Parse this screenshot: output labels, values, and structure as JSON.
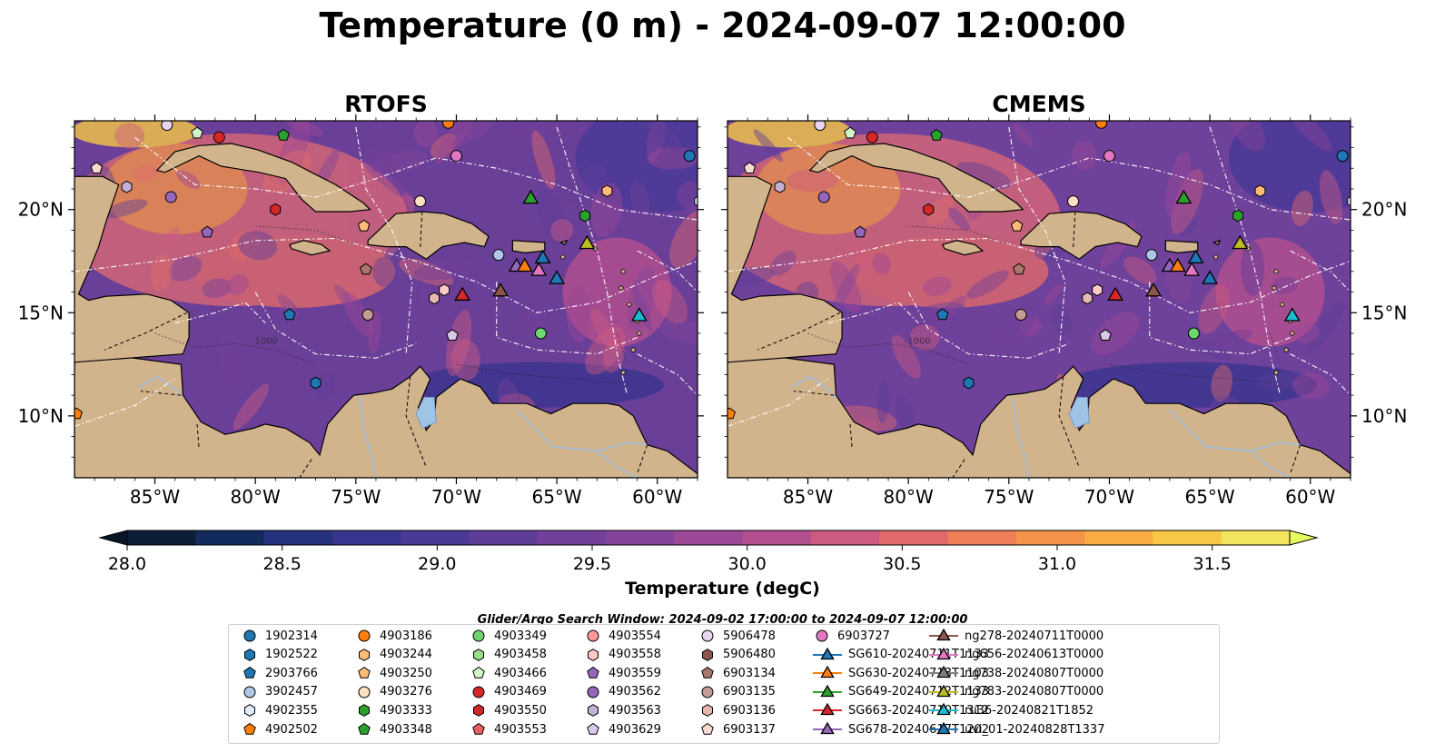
{
  "title": "Temperature (0 m) - 2024-09-07 12:00:00",
  "panels": [
    {
      "title": "RTOFS"
    },
    {
      "title": "CMEMS"
    }
  ],
  "axes": {
    "lon_ticks": [
      "85°W",
      "80°W",
      "75°W",
      "70°W",
      "65°W",
      "60°W"
    ],
    "lon_values": [
      -85,
      -80,
      -75,
      -70,
      -65,
      -60
    ],
    "lat_ticks": [
      "20°N",
      "15°N",
      "10°N"
    ],
    "lat_values": [
      20,
      15,
      10
    ],
    "lon_range": [
      -89,
      -58
    ],
    "lat_range": [
      7,
      24.3
    ]
  },
  "colorbar": {
    "label": "Temperature (degC)",
    "ticks": [
      "28.0",
      "28.5",
      "29.0",
      "29.5",
      "30.0",
      "30.5",
      "31.0",
      "31.5"
    ],
    "range": [
      28.0,
      31.75
    ],
    "colors": [
      "#0b1e35",
      "#132b5c",
      "#25317f",
      "#38358f",
      "#4b3996",
      "#5e3d98",
      "#72409a",
      "#85449a",
      "#9c4897",
      "#b44f8f",
      "#cd5a80",
      "#e06a6b",
      "#ee7e58",
      "#f5934a",
      "#f9ab44",
      "#f7c846",
      "#f2e55d"
    ],
    "over_color": "#e8fa60",
    "under_color": "#081626"
  },
  "colors": {
    "land": "#d2b48c",
    "lake": "#9ec5e8",
    "river": "#a9bcd0"
  },
  "search_window": "Glider/Argo Search Window: 2024-09-02 17:00:00 to 2024-09-07 12:00:00",
  "legend": [
    {
      "label": "1902314",
      "shape": "circle",
      "color": "#1f77b4"
    },
    {
      "label": "1902522",
      "shape": "hexagon",
      "color": "#1f77b4"
    },
    {
      "label": "2903766",
      "shape": "pentagon",
      "color": "#1f77b4"
    },
    {
      "label": "3902457",
      "shape": "circle",
      "color": "#aec7e8"
    },
    {
      "label": "4902355",
      "shape": "hexagon",
      "color": "#e1ecfa"
    },
    {
      "label": "4902502",
      "shape": "pentagon",
      "color": "#ff7f0e"
    },
    {
      "label": "4903186",
      "shape": "circle",
      "color": "#ff7f0e"
    },
    {
      "label": "4903244",
      "shape": "hexagon",
      "color": "#ffbb78"
    },
    {
      "label": "4903250",
      "shape": "pentagon",
      "color": "#ffbb78"
    },
    {
      "label": "4903276",
      "shape": "circle",
      "color": "#ffe0c2"
    },
    {
      "label": "4903333",
      "shape": "hexagon",
      "color": "#2ca02c"
    },
    {
      "label": "4903348",
      "shape": "pentagon",
      "color": "#2ca02c"
    },
    {
      "label": "4903349",
      "shape": "circle",
      "color": "#6fd66f"
    },
    {
      "label": "4903458",
      "shape": "hexagon",
      "color": "#98df8a"
    },
    {
      "label": "4903466",
      "shape": "pentagon",
      "color": "#d4f5cc"
    },
    {
      "label": "4903469",
      "shape": "circle",
      "color": "#d62728"
    },
    {
      "label": "4903550",
      "shape": "hexagon",
      "color": "#d62728"
    },
    {
      "label": "4903553",
      "shape": "pentagon",
      "color": "#e8605f"
    },
    {
      "label": "4903554",
      "shape": "circle",
      "color": "#ff9896"
    },
    {
      "label": "4903558",
      "shape": "hexagon",
      "color": "#ffc9c8"
    },
    {
      "label": "4903559",
      "shape": "pentagon",
      "color": "#9467bd"
    },
    {
      "label": "4903562",
      "shape": "circle",
      "color": "#9467bd"
    },
    {
      "label": "4903563",
      "shape": "hexagon",
      "color": "#c5b0d5"
    },
    {
      "label": "4903629",
      "shape": "pentagon",
      "color": "#d9c9e8"
    },
    {
      "label": "5906478",
      "shape": "circle",
      "color": "#e8d5f2"
    },
    {
      "label": "5906480",
      "shape": "hexagon",
      "color": "#8c564b"
    },
    {
      "label": "6903134",
      "shape": "pentagon",
      "color": "#a8786e"
    },
    {
      "label": "6903135",
      "shape": "circle",
      "color": "#c49c94"
    },
    {
      "label": "6903136",
      "shape": "hexagon",
      "color": "#e6b8b0"
    },
    {
      "label": "6903137",
      "shape": "pentagon",
      "color": "#f7d9d2"
    },
    {
      "label": "6903727",
      "shape": "circle",
      "color": "#e377c2"
    },
    {
      "label": "SG610-20240711T1133",
      "shape": "triangle-line",
      "color": "#1f77b4"
    },
    {
      "label": "SG630-20240713T1103",
      "shape": "triangle-line",
      "color": "#ff7f0e"
    },
    {
      "label": "SG649-20240712T1133",
      "shape": "triangle-line",
      "color": "#2ca02c"
    },
    {
      "label": "SG663-20240710T1312",
      "shape": "triangle-line",
      "color": "#d62728"
    },
    {
      "label": "SG678-20240617T1202",
      "shape": "triangle-line",
      "color": "#9467bd"
    },
    {
      "label": "ng278-20240711T0000",
      "shape": "triangle-line",
      "color": "#8c564b"
    },
    {
      "label": "ng656-20240613T0000",
      "shape": "triangle-line",
      "color": "#e377c2"
    },
    {
      "label": "ng738-20240807T0000",
      "shape": "triangle-line",
      "color": "#7f7f7f"
    },
    {
      "label": "ng783-20240807T0000",
      "shape": "triangle-line",
      "color": "#bcbd22"
    },
    {
      "label": "ru36-20240821T1852",
      "shape": "triangle-line",
      "color": "#17becf"
    },
    {
      "label": "uvi_01-20240828T1337",
      "shape": "triangle-line",
      "color": "#1f77b4"
    }
  ],
  "markers": [
    {
      "ref": "1902314",
      "lon": -58.4,
      "lat": 22.6
    },
    {
      "ref": "4903562",
      "lon": -84.2,
      "lat": 20.6
    },
    {
      "ref": "4903563",
      "lon": -86.4,
      "lat": 21.1
    },
    {
      "ref": "6903137",
      "lon": -87.9,
      "lat": 22.0
    },
    {
      "ref": "4903466",
      "lon": -82.9,
      "lat": 23.7
    },
    {
      "ref": "4903469",
      "lon": -81.8,
      "lat": 23.5
    },
    {
      "ref": "5906478",
      "lon": -84.4,
      "lat": 24.1
    },
    {
      "ref": "4903348",
      "lon": -78.6,
      "lat": 23.6
    },
    {
      "ref": "4903186",
      "lon": -70.4,
      "lat": 24.2
    },
    {
      "ref": "6903727",
      "lon": -70.0,
      "lat": 22.6
    },
    {
      "ref": "4903244",
      "lon": -62.5,
      "lat": 20.9
    },
    {
      "ref": "4903276",
      "lon": -71.8,
      "lat": 20.4
    },
    {
      "ref": "4903250",
      "lon": -74.6,
      "lat": 19.2
    },
    {
      "ref": "4903559",
      "lon": -82.4,
      "lat": 18.9
    },
    {
      "ref": "6903134",
      "lon": -74.5,
      "lat": 17.1
    },
    {
      "ref": "3902457",
      "lon": -67.9,
      "lat": 17.8
    },
    {
      "ref": "4903333",
      "lon": -63.6,
      "lat": 19.7
    },
    {
      "ref": "4903558",
      "lon": -70.6,
      "lat": 16.1
    },
    {
      "ref": "6903136",
      "lon": -71.1,
      "lat": 15.7
    },
    {
      "ref": "6903135",
      "lon": -74.4,
      "lat": 14.9
    },
    {
      "ref": "2903766",
      "lon": -78.3,
      "lat": 14.9
    },
    {
      "ref": "4903629",
      "lon": -70.2,
      "lat": 13.9
    },
    {
      "ref": "4903349",
      "lon": -65.8,
      "lat": 14.0
    },
    {
      "ref": "1902522",
      "lon": -77.0,
      "lat": 11.6
    },
    {
      "ref": "4902502",
      "lon": -88.9,
      "lat": 10.1
    },
    {
      "ref": "4902355",
      "lon": -57.9,
      "lat": 20.4
    },
    {
      "ref": "4903550",
      "lon": -79.0,
      "lat": 20.0
    },
    {
      "ref": "SG649-20240712T1133",
      "lon": -66.3,
      "lat": 20.6
    },
    {
      "ref": "ng783-20240807T0000",
      "lon": -63.5,
      "lat": 18.4
    },
    {
      "ref": "SG678-20240617T1202",
      "lon": -67.0,
      "lat": 17.3
    },
    {
      "ref": "SG630-20240713T1103",
      "lon": -66.6,
      "lat": 17.3
    },
    {
      "ref": "ng656-20240613T0000",
      "lon": -65.9,
      "lat": 17.1
    },
    {
      "ref": "SG610-20240711T1133",
      "lon": -65.7,
      "lat": 17.7
    },
    {
      "ref": "uvi_01-20240828T1337",
      "lon": -65.0,
      "lat": 16.7
    },
    {
      "ref": "ng278-20240711T0000",
      "lon": -67.8,
      "lat": 16.1
    },
    {
      "ref": "SG663-20240710T1312",
      "lon": -69.7,
      "lat": 15.9
    },
    {
      "ref": "ru36-20240821T1852",
      "lon": -60.9,
      "lat": 14.9
    }
  ]
}
